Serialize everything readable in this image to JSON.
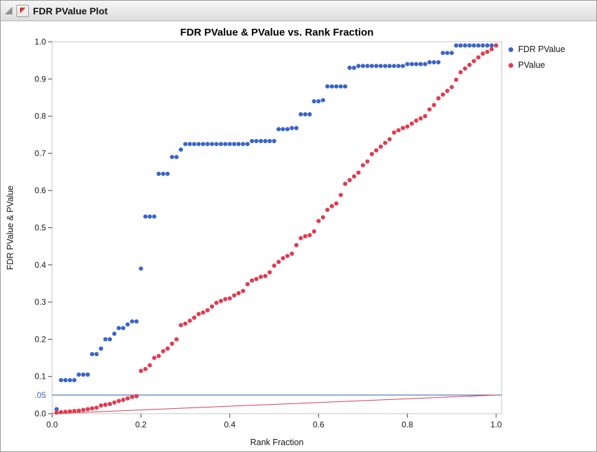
{
  "window": {
    "title": "FDR PValue Plot"
  },
  "header": {
    "disclosure_icon": "disclosure-triangle",
    "menu_icon": "red-triangle-menu"
  },
  "chart_data": {
    "type": "scatter",
    "title": "FDR PValue & PValue vs. Rank Fraction",
    "xlabel": "Rank Fraction",
    "ylabel": "FDR PValue & PValue",
    "xlim": [
      0.0,
      1.0
    ],
    "ylim": [
      0.0,
      1.0
    ],
    "grid": false,
    "legend_position": "right",
    "x_ticks": [
      0.0,
      0.2,
      0.4,
      0.6,
      0.8,
      1.0
    ],
    "y_ticks": [
      0.0,
      0.1,
      0.2,
      0.3,
      0.4,
      0.5,
      0.6,
      0.7,
      0.8,
      0.9,
      1.0
    ],
    "special_y_label": {
      "text": ".05",
      "value": 0.05,
      "color": "#3a65c8"
    },
    "ref_lines": [
      {
        "name": "alpha-threshold-line",
        "orientation": "horizontal",
        "y": 0.05,
        "color": "#2c56a0"
      },
      {
        "name": "pvalue-diagonal-line",
        "orientation": "segment",
        "x1": 0.0,
        "y1": 0.0,
        "x2": 1.0,
        "y2": 0.05,
        "color": "#d43f51"
      }
    ],
    "x": [
      0.01,
      0.02,
      0.03,
      0.04,
      0.05,
      0.06,
      0.07,
      0.08,
      0.09,
      0.1,
      0.11,
      0.12,
      0.13,
      0.14,
      0.15,
      0.16,
      0.17,
      0.18,
      0.19,
      0.2,
      0.21,
      0.22,
      0.23,
      0.24,
      0.25,
      0.26,
      0.27,
      0.28,
      0.29,
      0.3,
      0.31,
      0.32,
      0.33,
      0.34,
      0.35,
      0.36,
      0.37,
      0.38,
      0.39,
      0.4,
      0.41,
      0.42,
      0.43,
      0.44,
      0.45,
      0.46,
      0.47,
      0.48,
      0.49,
      0.5,
      0.51,
      0.52,
      0.53,
      0.54,
      0.55,
      0.56,
      0.57,
      0.58,
      0.59,
      0.6,
      0.61,
      0.62,
      0.63,
      0.64,
      0.65,
      0.66,
      0.67,
      0.68,
      0.69,
      0.7,
      0.71,
      0.72,
      0.73,
      0.74,
      0.75,
      0.76,
      0.77,
      0.78,
      0.79,
      0.8,
      0.81,
      0.82,
      0.83,
      0.84,
      0.85,
      0.86,
      0.87,
      0.88,
      0.89,
      0.9,
      0.91,
      0.92,
      0.93,
      0.94,
      0.95,
      0.96,
      0.97,
      0.98,
      0.99,
      1.0
    ],
    "series": [
      {
        "name": "FDR PValue",
        "color": "#3a65c8",
        "values": [
          0.012,
          0.09,
          0.09,
          0.09,
          0.09,
          0.105,
          0.105,
          0.105,
          0.16,
          0.16,
          0.175,
          0.2,
          0.2,
          0.215,
          0.23,
          0.23,
          0.24,
          0.248,
          0.248,
          0.39,
          0.53,
          0.53,
          0.53,
          0.645,
          0.645,
          0.645,
          0.69,
          0.69,
          0.71,
          0.725,
          0.725,
          0.725,
          0.725,
          0.725,
          0.725,
          0.725,
          0.725,
          0.725,
          0.725,
          0.725,
          0.725,
          0.725,
          0.725,
          0.725,
          0.733,
          0.733,
          0.733,
          0.733,
          0.733,
          0.733,
          0.765,
          0.765,
          0.765,
          0.768,
          0.768,
          0.805,
          0.805,
          0.805,
          0.84,
          0.84,
          0.843,
          0.88,
          0.88,
          0.88,
          0.88,
          0.88,
          0.93,
          0.93,
          0.935,
          0.935,
          0.935,
          0.935,
          0.935,
          0.935,
          0.935,
          0.935,
          0.935,
          0.935,
          0.935,
          0.94,
          0.94,
          0.94,
          0.94,
          0.94,
          0.945,
          0.945,
          0.945,
          0.97,
          0.97,
          0.97,
          0.99,
          0.99,
          0.99,
          0.99,
          0.99,
          0.99,
          0.99,
          0.99,
          0.99,
          0.99
        ]
      },
      {
        "name": "PValue",
        "color": "#e03c50",
        "values": [
          0.003,
          0.004,
          0.005,
          0.006,
          0.007,
          0.008,
          0.01,
          0.012,
          0.014,
          0.016,
          0.022,
          0.024,
          0.026,
          0.03,
          0.034,
          0.037,
          0.041,
          0.045,
          0.047,
          0.115,
          0.12,
          0.13,
          0.15,
          0.155,
          0.168,
          0.175,
          0.188,
          0.2,
          0.238,
          0.242,
          0.25,
          0.258,
          0.268,
          0.272,
          0.278,
          0.288,
          0.298,
          0.303,
          0.308,
          0.31,
          0.318,
          0.324,
          0.33,
          0.348,
          0.358,
          0.362,
          0.368,
          0.37,
          0.38,
          0.398,
          0.408,
          0.418,
          0.424,
          0.43,
          0.453,
          0.472,
          0.477,
          0.48,
          0.49,
          0.518,
          0.528,
          0.548,
          0.558,
          0.565,
          0.588,
          0.618,
          0.628,
          0.638,
          0.648,
          0.668,
          0.678,
          0.698,
          0.708,
          0.718,
          0.728,
          0.738,
          0.756,
          0.762,
          0.768,
          0.772,
          0.78,
          0.788,
          0.794,
          0.8,
          0.818,
          0.83,
          0.848,
          0.858,
          0.868,
          0.878,
          0.898,
          0.918,
          0.928,
          0.938,
          0.948,
          0.958,
          0.968,
          0.973,
          0.98,
          0.99
        ]
      }
    ]
  }
}
